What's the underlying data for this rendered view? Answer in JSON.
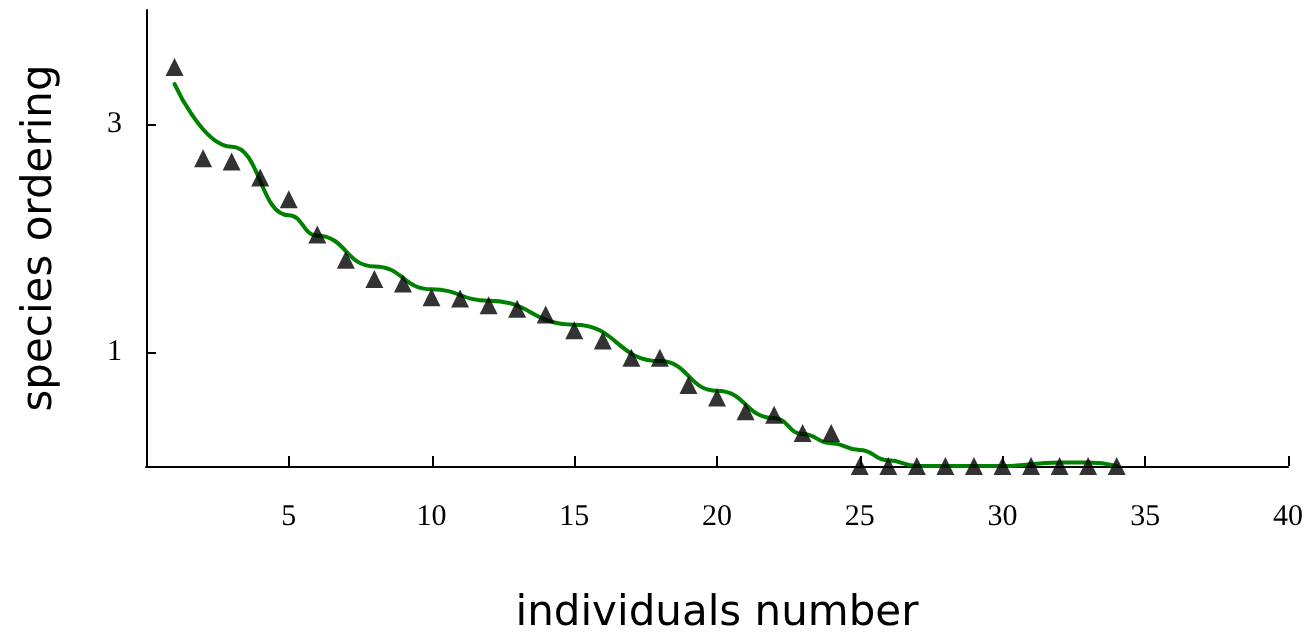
{
  "chart_data": {
    "type": "scatter",
    "xlabel": "individuals number",
    "ylabel": "species ordering",
    "xlim": [
      0,
      40
    ],
    "xticks": [
      5,
      10,
      15,
      20,
      25,
      30,
      35,
      40
    ],
    "ylim": [
      0,
      4
    ],
    "yticks": [
      1,
      3
    ],
    "grid": false,
    "series": [
      {
        "color": "#000000",
        "marker": "triangle",
        "x": [
          1,
          2,
          3,
          4,
          5,
          6,
          7,
          8,
          9,
          10,
          11,
          12,
          13,
          14,
          15,
          16,
          17,
          18,
          19,
          20,
          21,
          22,
          23,
          24,
          25,
          26,
          27,
          28,
          29,
          30,
          31,
          32,
          33,
          34
        ],
        "values": [
          3.5,
          2.7,
          2.67,
          2.53,
          2.34,
          2.03,
          1.81,
          1.64,
          1.6,
          1.48,
          1.47,
          1.41,
          1.38,
          1.33,
          1.19,
          1.1,
          0.95,
          0.95,
          0.71,
          0.6,
          0.48,
          0.45,
          0.29,
          0.29,
          0,
          0,
          0,
          0,
          0,
          0,
          0,
          0,
          0,
          0
        ]
      },
      {
        "type": "line",
        "color": "#008000",
        "marker": "none",
        "line_style": "solid",
        "x": [
          1,
          3,
          5,
          6,
          8,
          10,
          12,
          15,
          18,
          20,
          22,
          23,
          24,
          25,
          26,
          27,
          30,
          32,
          33,
          34
        ],
        "values": [
          3.35,
          2.8,
          2.2,
          2.02,
          1.75,
          1.55,
          1.45,
          1.24,
          0.92,
          0.66,
          0.42,
          0.28,
          0.2,
          0.14,
          0.05,
          0,
          0,
          0.03,
          0.03,
          0
        ]
      }
    ]
  }
}
